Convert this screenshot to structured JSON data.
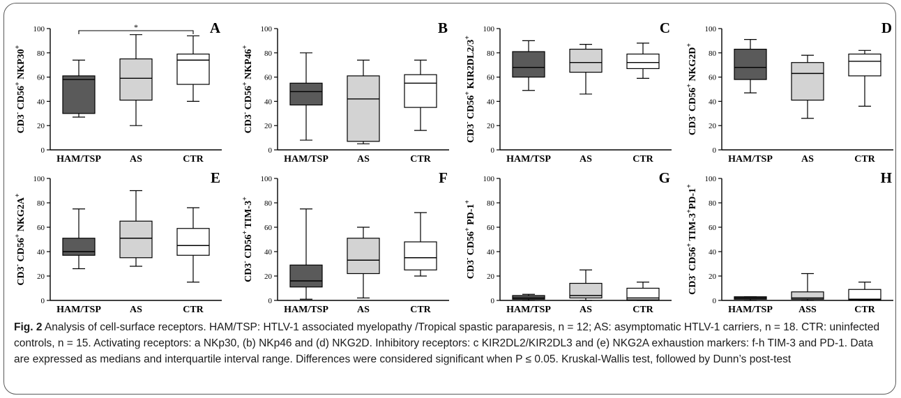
{
  "chart_data": [
    {
      "panel": "A",
      "type": "boxplot",
      "ylabel_main": "CD3",
      "ylabel_rest": "CD56 NKP30",
      "ylabel_parts": [
        {
          "t": "CD3"
        },
        {
          "t": "-",
          "s": "sup"
        },
        {
          "t": " CD56"
        },
        {
          "t": "+",
          "s": "sup"
        },
        {
          "t": " NKP30"
        },
        {
          "t": "+",
          "s": "sup"
        }
      ],
      "ylim": [
        0,
        100
      ],
      "yticks": [
        "0",
        "20",
        "40",
        "60",
        "80",
        "100"
      ],
      "categories": [
        "HAM/TSP",
        "AS",
        "CTR"
      ],
      "boxes": [
        {
          "min": 27,
          "q1": 30,
          "median": 58,
          "q3": 61,
          "max": 74
        },
        {
          "min": 20,
          "q1": 41,
          "median": 59,
          "q3": 75,
          "max": 95
        },
        {
          "min": 40,
          "q1": 54,
          "median": 74,
          "q3": 79,
          "max": 94
        }
      ],
      "significance": {
        "from": 0,
        "to": 2,
        "label": "*"
      }
    },
    {
      "panel": "B",
      "type": "boxplot",
      "ylabel_parts": [
        {
          "t": "CD3"
        },
        {
          "t": "-",
          "s": "sup"
        },
        {
          "t": " CD56"
        },
        {
          "t": "+",
          "s": "sup"
        },
        {
          "t": " NKP46"
        },
        {
          "t": "+",
          "s": "sup"
        }
      ],
      "ylim": [
        0,
        100
      ],
      "yticks": [
        "0",
        "20",
        "40",
        "60",
        "80",
        "100"
      ],
      "categories": [
        "HAM/TSP",
        "AS",
        "CTR"
      ],
      "boxes": [
        {
          "min": 8,
          "q1": 37,
          "median": 48,
          "q3": 55,
          "max": 80
        },
        {
          "min": 5,
          "q1": 7,
          "median": 42,
          "q3": 61,
          "max": 74
        },
        {
          "min": 16,
          "q1": 35,
          "median": 55,
          "q3": 62,
          "max": 74
        }
      ]
    },
    {
      "panel": "C",
      "type": "boxplot",
      "ylabel_parts": [
        {
          "t": "CD3"
        },
        {
          "t": "-",
          "s": "sup"
        },
        {
          "t": " CD56"
        },
        {
          "t": "+",
          "s": "sup"
        },
        {
          "t": " KIR2DL2/3"
        },
        {
          "t": "+",
          "s": "sup"
        }
      ],
      "ylim": [
        0,
        100
      ],
      "yticks": [
        "0",
        "20",
        "40",
        "60",
        "80",
        "100"
      ],
      "categories": [
        "HAM/TSP",
        "AS",
        "CTR"
      ],
      "boxes": [
        {
          "min": 49,
          "q1": 60,
          "median": 68,
          "q3": 81,
          "max": 90
        },
        {
          "min": 46,
          "q1": 64,
          "median": 72,
          "q3": 83,
          "max": 87
        },
        {
          "min": 59,
          "q1": 67,
          "median": 72,
          "q3": 79,
          "max": 88
        }
      ]
    },
    {
      "panel": "D",
      "type": "boxplot",
      "ylabel_parts": [
        {
          "t": "CD3"
        },
        {
          "t": "-",
          "s": "sup"
        },
        {
          "t": " CD56"
        },
        {
          "t": "+",
          "s": "sup"
        },
        {
          "t": " NKG2D"
        },
        {
          "t": "+",
          "s": "sup"
        }
      ],
      "ylim": [
        0,
        100
      ],
      "yticks": [
        "0",
        "20",
        "40",
        "60",
        "80",
        "100"
      ],
      "categories": [
        "HAM/TSP",
        "AS",
        "CTR"
      ],
      "boxes": [
        {
          "min": 47,
          "q1": 58,
          "median": 68,
          "q3": 83,
          "max": 91
        },
        {
          "min": 26,
          "q1": 41,
          "median": 63,
          "q3": 72,
          "max": 78
        },
        {
          "min": 36,
          "q1": 61,
          "median": 73,
          "q3": 79,
          "max": 82
        }
      ]
    },
    {
      "panel": "E",
      "type": "boxplot",
      "ylabel_parts": [
        {
          "t": "CD3"
        },
        {
          "t": "-",
          "s": "sup"
        },
        {
          "t": " CD56"
        },
        {
          "t": "+",
          "s": "sup"
        },
        {
          "t": " NKG2A"
        },
        {
          "t": "+",
          "s": "sup"
        }
      ],
      "ylim": [
        0,
        100
      ],
      "yticks": [
        "0",
        "20",
        "40",
        "60",
        "80",
        "100"
      ],
      "categories": [
        "HAM/TSP",
        "AS",
        "CTR"
      ],
      "boxes": [
        {
          "min": 26,
          "q1": 37,
          "median": 40,
          "q3": 51,
          "max": 75
        },
        {
          "min": 28,
          "q1": 35,
          "median": 51,
          "q3": 65,
          "max": 90
        },
        {
          "min": 15,
          "q1": 37,
          "median": 45,
          "q3": 59,
          "max": 76
        }
      ]
    },
    {
      "panel": "F",
      "type": "boxplot",
      "ylabel_parts": [
        {
          "t": "CD3"
        },
        {
          "t": "-",
          "s": "sup"
        },
        {
          "t": " CD56"
        },
        {
          "t": "+",
          "s": "sup"
        },
        {
          "t": " TIM-3"
        },
        {
          "t": "+",
          "s": "sup"
        }
      ],
      "ylim": [
        0,
        100
      ],
      "yticks": [
        "0",
        "20",
        "40",
        "60",
        "80",
        "100"
      ],
      "categories": [
        "HAM/TSP",
        "AS",
        "CTR"
      ],
      "boxes": [
        {
          "min": 1,
          "q1": 11,
          "median": 16,
          "q3": 29,
          "max": 75
        },
        {
          "min": 2,
          "q1": 22,
          "median": 33,
          "q3": 51,
          "max": 60
        },
        {
          "min": 20,
          "q1": 25,
          "median": 35,
          "q3": 48,
          "max": 72
        }
      ]
    },
    {
      "panel": "G",
      "type": "boxplot",
      "ylabel_parts": [
        {
          "t": "CD3"
        },
        {
          "t": "-",
          "s": "sup"
        },
        {
          "t": " CD56"
        },
        {
          "t": "+",
          "s": "sup"
        },
        {
          "t": " PD-1"
        },
        {
          "t": "+",
          "s": "sup"
        }
      ],
      "ylim": [
        0,
        100
      ],
      "yticks": [
        "0",
        "20",
        "40",
        "60",
        "80",
        "100"
      ],
      "categories": [
        "HAM/TSP",
        "AS",
        "CTR"
      ],
      "boxes": [
        {
          "min": 0,
          "q1": 1,
          "median": 2,
          "q3": 4,
          "max": 5
        },
        {
          "min": 0,
          "q1": 2,
          "median": 4,
          "q3": 14,
          "max": 25
        },
        {
          "min": 0,
          "q1": 0.5,
          "median": 2,
          "q3": 10,
          "max": 15
        }
      ]
    },
    {
      "panel": "H",
      "type": "boxplot",
      "ylabel_parts": [
        {
          "t": "CD3"
        },
        {
          "t": "-",
          "s": "sup"
        },
        {
          "t": " CD56"
        },
        {
          "t": "+",
          "s": "sup"
        },
        {
          "t": " TIM-3"
        },
        {
          "t": "+",
          "s": "sup"
        },
        {
          "t": "PD-1"
        },
        {
          "t": "+",
          "s": "sup"
        }
      ],
      "ylim": [
        0,
        100
      ],
      "yticks": [
        "0",
        "20",
        "40",
        "60",
        "80",
        "100"
      ],
      "categories": [
        "HAM/TSP",
        "ASS",
        "CTR"
      ],
      "boxes": [
        {
          "min": 0,
          "q1": 1,
          "median": 2,
          "q3": 3,
          "max": 3
        },
        {
          "min": 0,
          "q1": 1,
          "median": 2,
          "q3": 7,
          "max": 22
        },
        {
          "min": 0,
          "q1": 0.5,
          "median": 1,
          "q3": 9,
          "max": 15
        }
      ]
    }
  ],
  "group_colors": [
    "#5a5a5a",
    "#d3d3d3",
    "#ffffff"
  ],
  "caption": {
    "label": "Fig. 2",
    "text": " Analysis of cell-surface receptors. HAM/TSP: HTLV-1 associated myelopathy /Tropical spastic paraparesis, n = 12; AS: asymptomatic HTLV-1 carriers, n = 18. CTR: uninfected controls, n = 15. Activating receptors: a NKp30, (b) NKp46 and (d) NKG2D. Inhibitory receptors: c KIR2DL2/KIR2DL3 and (e) NKG2A exhaustion markers: f-h TIM-3 and PD-1. Data are expressed as medians and interquartile interval range. Differences were considered significant when P ≤ 0.05. Kruskal-Wallis test, followed by Dunn’s post-test"
  }
}
